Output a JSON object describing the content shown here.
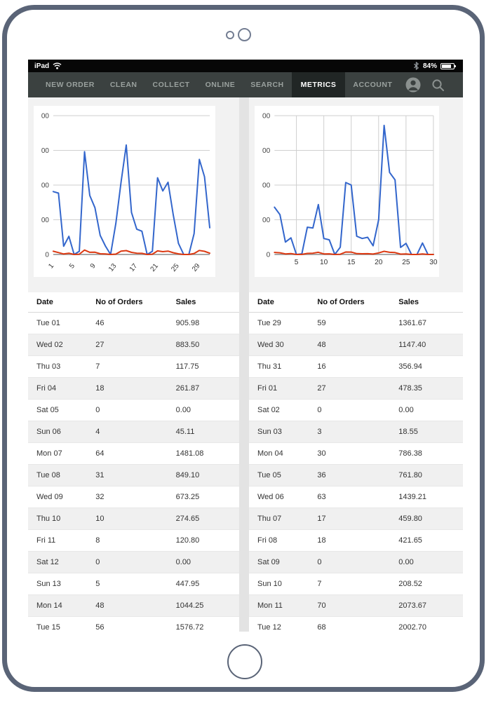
{
  "status_bar": {
    "carrier": "iPad",
    "battery_percent": "84%"
  },
  "nav": {
    "items": [
      "NEW ORDER",
      "CLEAN",
      "COLLECT",
      "ONLINE",
      "SEARCH",
      "METRICS",
      "ACCOUNT"
    ],
    "active_item": "METRICS"
  },
  "colors": {
    "sales_line": "#3366cc",
    "orders_line": "#dc3912",
    "nav_bg": "#3b4140",
    "nav_active_bg": "#212625",
    "gridline": "#cfcfcf",
    "axis": "#a8a8a8"
  },
  "chart_data": [
    {
      "type": "line",
      "panel": "left",
      "x_range": [
        1,
        31
      ],
      "ylim": [
        0,
        2000
      ],
      "grid_vertical": false,
      "x_labels_rotated": true,
      "legend_position": "none",
      "y_ticks": [
        {
          "value": 2000,
          "label": "00"
        },
        {
          "value": 1500,
          "label": "00"
        },
        {
          "value": 1000,
          "label": "00"
        },
        {
          "value": 500,
          "label": "00"
        },
        {
          "value": 0,
          "label": "0"
        }
      ],
      "x_ticks": [
        {
          "value": 1,
          "label": "1"
        },
        {
          "value": 5,
          "label": "5"
        },
        {
          "value": 9,
          "label": "9"
        },
        {
          "value": 13,
          "label": "13"
        },
        {
          "value": 17,
          "label": "17"
        },
        {
          "value": 21,
          "label": "21"
        },
        {
          "value": 25,
          "label": "25"
        },
        {
          "value": 29,
          "label": "29"
        }
      ],
      "series": [
        {
          "name": "Sales",
          "color": "#3366cc",
          "values": [
            905.98,
            883.5,
            117.75,
            261.87,
            0,
            45.11,
            1481.08,
            849.1,
            673.25,
            274.65,
            120.8,
            0,
            447.95,
            1044.25,
            1576.72,
            605,
            365,
            335,
            0,
            45,
            1105,
            915,
            1040,
            575,
            160,
            0,
            0,
            300,
            1370,
            1120,
            385
          ]
        },
        {
          "name": "No of Orders",
          "color": "#dc3912",
          "values": [
            46,
            27,
            7,
            18,
            0,
            4,
            64,
            31,
            32,
            10,
            8,
            0,
            5,
            48,
            56,
            30,
            18,
            16,
            0,
            4,
            52,
            40,
            48,
            25,
            9,
            0,
            0,
            14,
            58,
            45,
            18
          ]
        }
      ]
    },
    {
      "type": "line",
      "panel": "right",
      "x_range": [
        1,
        30
      ],
      "ylim": [
        0,
        4000
      ],
      "grid_vertical": true,
      "x_labels_rotated": false,
      "legend_position": "none",
      "y_ticks": [
        {
          "value": 4000,
          "label": "00"
        },
        {
          "value": 3000,
          "label": "00"
        },
        {
          "value": 2000,
          "label": "00"
        },
        {
          "value": 1000,
          "label": "00"
        },
        {
          "value": 0,
          "label": "0"
        }
      ],
      "x_ticks": [
        {
          "value": 5,
          "label": "5"
        },
        {
          "value": 10,
          "label": "10"
        },
        {
          "value": 15,
          "label": "15"
        },
        {
          "value": 20,
          "label": "20"
        },
        {
          "value": 25,
          "label": "25"
        },
        {
          "value": 30,
          "label": "30"
        }
      ],
      "series": [
        {
          "name": "Sales",
          "color": "#3366cc",
          "values": [
            1361.67,
            1147.4,
            356.94,
            478.35,
            0,
            18.55,
            786.38,
            761.8,
            1439.21,
            459.8,
            421.65,
            0,
            208.52,
            2073.67,
            2002.7,
            525,
            460,
            495,
            250,
            1000,
            3720,
            2365,
            2150,
            205,
            320,
            0,
            0,
            330,
            0,
            0
          ]
        },
        {
          "name": "No of Orders",
          "color": "#dc3912",
          "values": [
            59,
            48,
            16,
            27,
            0,
            3,
            30,
            36,
            63,
            17,
            18,
            0,
            7,
            70,
            68,
            25,
            20,
            22,
            12,
            45,
            90,
            62,
            55,
            10,
            16,
            0,
            0,
            15,
            0,
            0
          ]
        }
      ]
    }
  ],
  "tables": [
    {
      "headers": [
        "Date",
        "No of Orders",
        "Sales"
      ],
      "rows": [
        [
          "Tue 01",
          "46",
          "905.98"
        ],
        [
          "Wed 02",
          "27",
          "883.50"
        ],
        [
          "Thu 03",
          "7",
          "117.75"
        ],
        [
          "Fri 04",
          "18",
          "261.87"
        ],
        [
          "Sat 05",
          "0",
          "0.00"
        ],
        [
          "Sun 06",
          "4",
          "45.11"
        ],
        [
          "Mon 07",
          "64",
          "1481.08"
        ],
        [
          "Tue 08",
          "31",
          "849.10"
        ],
        [
          "Wed 09",
          "32",
          "673.25"
        ],
        [
          "Thu 10",
          "10",
          "274.65"
        ],
        [
          "Fri 11",
          "8",
          "120.80"
        ],
        [
          "Sat 12",
          "0",
          "0.00"
        ],
        [
          "Sun 13",
          "5",
          "447.95"
        ],
        [
          "Mon 14",
          "48",
          "1044.25"
        ],
        [
          "Tue 15",
          "56",
          "1576.72"
        ]
      ]
    },
    {
      "headers": [
        "Date",
        "No of Orders",
        "Sales"
      ],
      "rows": [
        [
          "Tue 29",
          "59",
          "1361.67"
        ],
        [
          "Wed 30",
          "48",
          "1147.40"
        ],
        [
          "Thu 31",
          "16",
          "356.94"
        ],
        [
          "Fri 01",
          "27",
          "478.35"
        ],
        [
          "Sat 02",
          "0",
          "0.00"
        ],
        [
          "Sun 03",
          "3",
          "18.55"
        ],
        [
          "Mon 04",
          "30",
          "786.38"
        ],
        [
          "Tue 05",
          "36",
          "761.80"
        ],
        [
          "Wed 06",
          "63",
          "1439.21"
        ],
        [
          "Thu 07",
          "17",
          "459.80"
        ],
        [
          "Fri 08",
          "18",
          "421.65"
        ],
        [
          "Sat 09",
          "0",
          "0.00"
        ],
        [
          "Sun 10",
          "7",
          "208.52"
        ],
        [
          "Mon 11",
          "70",
          "2073.67"
        ],
        [
          "Tue 12",
          "68",
          "2002.70"
        ]
      ]
    }
  ]
}
